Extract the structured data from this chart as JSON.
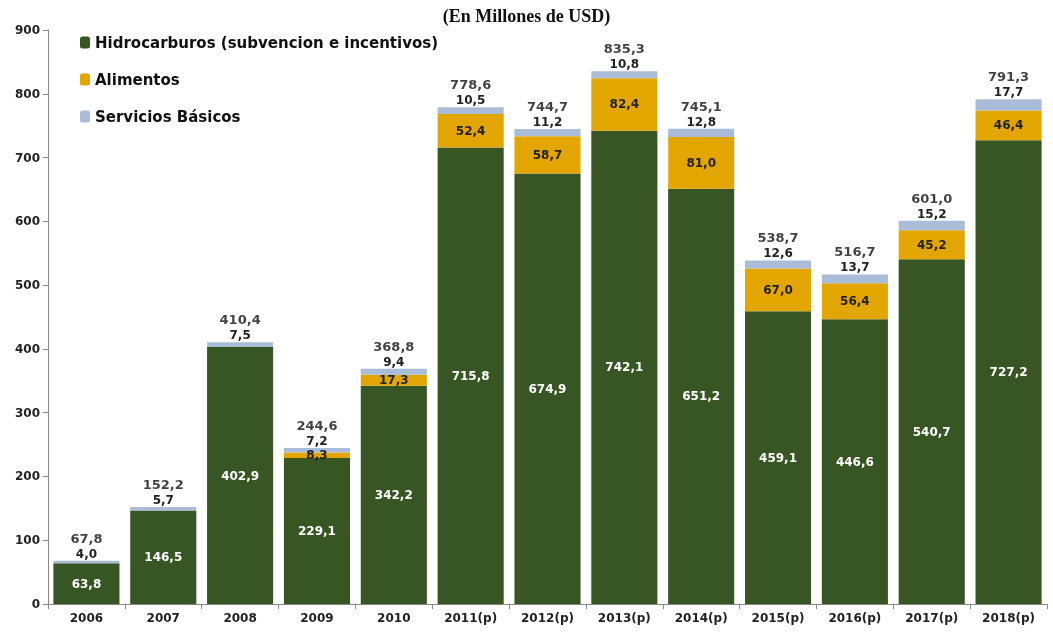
{
  "chart_data": {
    "type": "bar",
    "title": "(En Millones de USD)",
    "categories": [
      "2006",
      "2007",
      "2008",
      "2009",
      "2010",
      "2011(p)",
      "2012(p)",
      "2013(p)",
      "2014(p)",
      "2015(p)",
      "2016(p)",
      "2017(p)",
      "2018(p)"
    ],
    "stacked": true,
    "series": [
      {
        "name": "Hidrocarburos (subvencion e incentivos)",
        "color": "#375623",
        "values": [
          63.8,
          146.5,
          402.9,
          229.1,
          342.2,
          715.8,
          674.9,
          742.1,
          651.2,
          459.1,
          446.6,
          540.7,
          727.2
        ],
        "value_labels": [
          "63,8",
          "146,5",
          "402,9",
          "229,1",
          "342,2",
          "715,8",
          "674,9",
          "742,1",
          "651,2",
          "459,1",
          "446,6",
          "540,7",
          "727,2"
        ]
      },
      {
        "name": "Alimentos",
        "color": "#e3a600",
        "values": [
          null,
          null,
          null,
          8.3,
          17.3,
          52.4,
          58.7,
          82.4,
          81.0,
          67.0,
          56.4,
          45.2,
          46.4
        ],
        "value_labels": [
          null,
          null,
          null,
          "8,3",
          "17,3",
          "52,4",
          "58,7",
          "82,4",
          "81,0",
          "67,0",
          "56,4",
          "45,2",
          "46,4"
        ]
      },
      {
        "name": "Servicios Básicos",
        "color": "#a9bdd8",
        "values": [
          4.0,
          5.7,
          7.5,
          7.2,
          9.4,
          10.5,
          11.2,
          10.8,
          12.8,
          12.6,
          13.7,
          15.2,
          17.7
        ],
        "value_labels": [
          "4,0",
          "5,7",
          "7,5",
          "7,2",
          "9,4",
          "10,5",
          "11,2",
          "10,8",
          "12,8",
          "12,6",
          "13,7",
          "15,2",
          "17,7"
        ]
      }
    ],
    "totals": [
      "67,8",
      "152,2",
      "410,4",
      "244,6",
      "368,8",
      "778,6",
      "744,7",
      "835,3",
      "745,1",
      "538,7",
      "516,7",
      "601,0",
      "791,3"
    ],
    "ylim": [
      0,
      900
    ],
    "yticks": [
      0,
      100,
      200,
      300,
      400,
      500,
      600,
      700,
      800,
      900
    ],
    "grid": false,
    "legend": "top left"
  }
}
